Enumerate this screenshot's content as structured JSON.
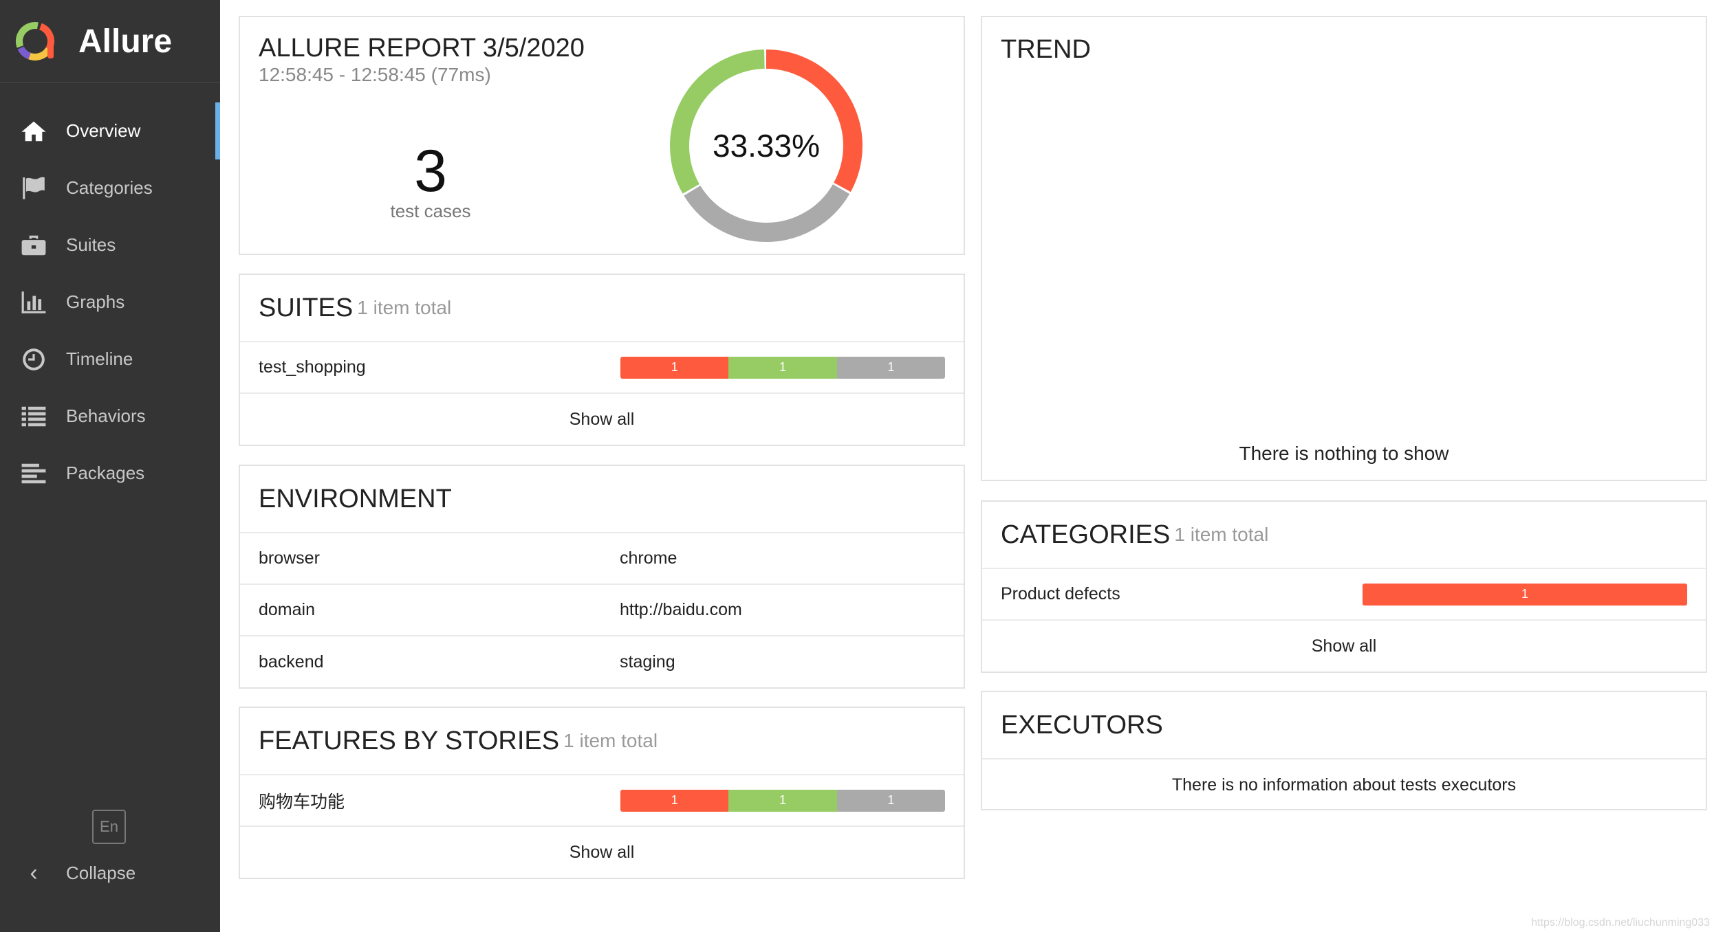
{
  "brand": {
    "name": "Allure"
  },
  "sidebar": {
    "items": [
      {
        "label": "Overview",
        "icon": "home-icon"
      },
      {
        "label": "Categories",
        "icon": "flag-icon"
      },
      {
        "label": "Suites",
        "icon": "briefcase-icon"
      },
      {
        "label": "Graphs",
        "icon": "bar-chart-icon"
      },
      {
        "label": "Timeline",
        "icon": "clock-icon"
      },
      {
        "label": "Behaviors",
        "icon": "list-icon"
      },
      {
        "label": "Packages",
        "icon": "align-left-icon"
      }
    ],
    "active": "Overview",
    "language": "En",
    "collapse": "Collapse"
  },
  "summary": {
    "title": "ALLURE REPORT 3/5/2020",
    "time": "12:58:45 - 12:58:45 (77ms)",
    "count": "3",
    "count_label": "test cases",
    "percent": "33.33%",
    "donut": {
      "failed": 1,
      "passed": 1,
      "skipped": 1
    }
  },
  "suites": {
    "title": "SUITES",
    "sub": "1 item total",
    "rows": [
      {
        "name": "test_shopping",
        "failed": "1",
        "passed": "1",
        "skipped": "1"
      }
    ],
    "show_all": "Show all"
  },
  "environment": {
    "title": "ENVIRONMENT",
    "rows": [
      {
        "key": "browser",
        "value": "chrome"
      },
      {
        "key": "domain",
        "value": "http://baidu.com"
      },
      {
        "key": "backend",
        "value": "staging"
      }
    ]
  },
  "features": {
    "title": "FEATURES BY STORIES",
    "sub": "1 item total",
    "rows": [
      {
        "name": "购物车功能",
        "failed": "1",
        "passed": "1",
        "skipped": "1"
      }
    ],
    "show_all": "Show all"
  },
  "trend": {
    "title": "TREND",
    "empty": "There is nothing to show"
  },
  "categories": {
    "title": "CATEGORIES",
    "sub": "1 item total",
    "rows": [
      {
        "name": "Product defects",
        "failed": "1"
      }
    ],
    "show_all": "Show all"
  },
  "executors": {
    "title": "EXECUTORS",
    "empty": "There is no information about tests executors"
  },
  "colors": {
    "failed": "#fd5a3e",
    "passed": "#97cc64",
    "skipped": "#aaaaaa",
    "sidebar": "#343434",
    "accent": "#6ab0e6"
  },
  "watermark": "https://blog.csdn.net/liuchunming033"
}
